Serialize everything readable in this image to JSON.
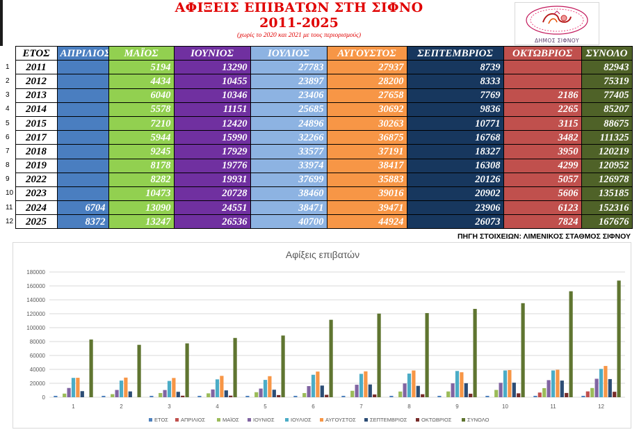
{
  "header": {
    "title": "ΑΦΙΞΕΙΣ ΕΠΙΒΑΤΩΝ ΣΤΗ ΣΙΦΝΟ",
    "years": "2011-2025",
    "note": "(χωρίς το 2020 και 2021 με τους περιορισμούς)",
    "logo_text": "ΔΗΜΟΣ ΣΙΦΝΟΥ"
  },
  "table": {
    "headers": [
      "ΕΤΟΣ",
      "ΑΠΡΙΛΙΟΣ",
      "ΜΑΪΟΣ",
      "ΙΟΥΝΙΟΣ",
      "ΙΟΥΛΙΟΣ",
      "ΑΥΓΟΥΣΤΟΣ",
      "ΣΕΠΤΕΜΒΡΙΟΣ",
      "ΟΚΤΩΒΡΙΟΣ",
      "ΣΥΝΟΛΟ"
    ],
    "rows": [
      {
        "idx": "1",
        "cells": [
          "2011",
          "",
          "5194",
          "13290",
          "27783",
          "27937",
          "8739",
          "",
          "82943"
        ]
      },
      {
        "idx": "2",
        "cells": [
          "2012",
          "",
          "4434",
          "10455",
          "23897",
          "28200",
          "8333",
          "",
          "75319"
        ]
      },
      {
        "idx": "3",
        "cells": [
          "2013",
          "",
          "6040",
          "10346",
          "23406",
          "27658",
          "7769",
          "2186",
          "77405"
        ]
      },
      {
        "idx": "4",
        "cells": [
          "2014",
          "",
          "5578",
          "11151",
          "25685",
          "30692",
          "9836",
          "2265",
          "85207"
        ]
      },
      {
        "idx": "5",
        "cells": [
          "2015",
          "",
          "7210",
          "12420",
          "24896",
          "30263",
          "10771",
          "3115",
          "88675"
        ]
      },
      {
        "idx": "6",
        "cells": [
          "2017",
          "",
          "5944",
          "15990",
          "32266",
          "36875",
          "16768",
          "3482",
          "111325"
        ]
      },
      {
        "idx": "7",
        "cells": [
          "2018",
          "",
          "9245",
          "17929",
          "33577",
          "37191",
          "18327",
          "3950",
          "120219"
        ]
      },
      {
        "idx": "8",
        "cells": [
          "2019",
          "",
          "8178",
          "19776",
          "33974",
          "38417",
          "16308",
          "4299",
          "120952"
        ]
      },
      {
        "idx": "9",
        "cells": [
          "2022",
          "",
          "8282",
          "19931",
          "37699",
          "35883",
          "20126",
          "5057",
          "126978"
        ]
      },
      {
        "idx": "10",
        "cells": [
          "2023",
          "",
          "10473",
          "20728",
          "38460",
          "39016",
          "20902",
          "5606",
          "135185"
        ]
      },
      {
        "idx": "11",
        "cells": [
          "2024",
          "6704",
          "13090",
          "24551",
          "38471",
          "39471",
          "23906",
          "6123",
          "152316"
        ]
      },
      {
        "idx": "12",
        "cells": [
          "2025",
          "8372",
          "13247",
          "26536",
          "40700",
          "44924",
          "26073",
          "7824",
          "167676"
        ]
      }
    ]
  },
  "source": "ΠΗΓΗ ΣΤΟΙΧΕΙΩΝ: ΛΙΜΕΝΙΚΟΣ ΣΤΑΘΜΟΣ ΣΙΦΝΟΥ",
  "chart_data": {
    "type": "bar",
    "title": "Αφίξεις επιβατών",
    "categories": [
      "1",
      "2",
      "3",
      "4",
      "5",
      "6",
      "7",
      "8",
      "9",
      "10",
      "11",
      "12"
    ],
    "ylim": [
      0,
      180000
    ],
    "yticks": [
      "0",
      "20000",
      "40000",
      "60000",
      "80000",
      "100000",
      "120000",
      "140000",
      "160000",
      "180000"
    ],
    "grid": true,
    "legend": "bottom",
    "series": [
      {
        "name": "ΕΤΟΣ",
        "color": "#4f81bd",
        "values": [
          2011,
          2012,
          2013,
          2014,
          2015,
          2017,
          2018,
          2019,
          2022,
          2023,
          2024,
          2025
        ]
      },
      {
        "name": "ΑΠΡΙΛΙΟΣ",
        "color": "#c0504d",
        "values": [
          0,
          0,
          0,
          0,
          0,
          0,
          0,
          0,
          0,
          0,
          6704,
          8372
        ]
      },
      {
        "name": "ΜΑΪΟΣ",
        "color": "#9bbb59",
        "values": [
          5194,
          4434,
          6040,
          5578,
          7210,
          5944,
          9245,
          8178,
          8282,
          10473,
          13090,
          13247
        ]
      },
      {
        "name": "ΙΟΥΝΙΟΣ",
        "color": "#8064a2",
        "values": [
          13290,
          10455,
          10346,
          11151,
          12420,
          15990,
          17929,
          19776,
          19931,
          20728,
          24551,
          26536
        ]
      },
      {
        "name": "ΙΟΥΛΙΟΣ",
        "color": "#4bacc6",
        "values": [
          27783,
          23897,
          23406,
          25685,
          24896,
          32266,
          33577,
          33974,
          37699,
          38460,
          38471,
          40700
        ]
      },
      {
        "name": "ΑΥΓΟΥΣΤΟΣ",
        "color": "#f79646",
        "values": [
          27937,
          28200,
          27658,
          30692,
          30263,
          36875,
          37191,
          38417,
          35883,
          39016,
          39471,
          44924
        ]
      },
      {
        "name": "ΣΕΠΤΕΜΒΡΙΟΣ",
        "color": "#2c4d75",
        "values": [
          8739,
          8333,
          7769,
          9836,
          10771,
          16768,
          18327,
          16308,
          20126,
          20902,
          23906,
          26073
        ]
      },
      {
        "name": "ΟΚΤΩΒΡΙΟΣ",
        "color": "#772c2a",
        "values": [
          0,
          0,
          2186,
          2265,
          3115,
          3482,
          3950,
          4299,
          5057,
          5606,
          6123,
          7824
        ]
      },
      {
        "name": "ΣΥΝΟΛΟ",
        "color": "#5f7530",
        "values": [
          82943,
          75319,
          77405,
          85207,
          88675,
          111325,
          120219,
          120952,
          126978,
          135185,
          152316,
          167676
        ]
      }
    ]
  }
}
